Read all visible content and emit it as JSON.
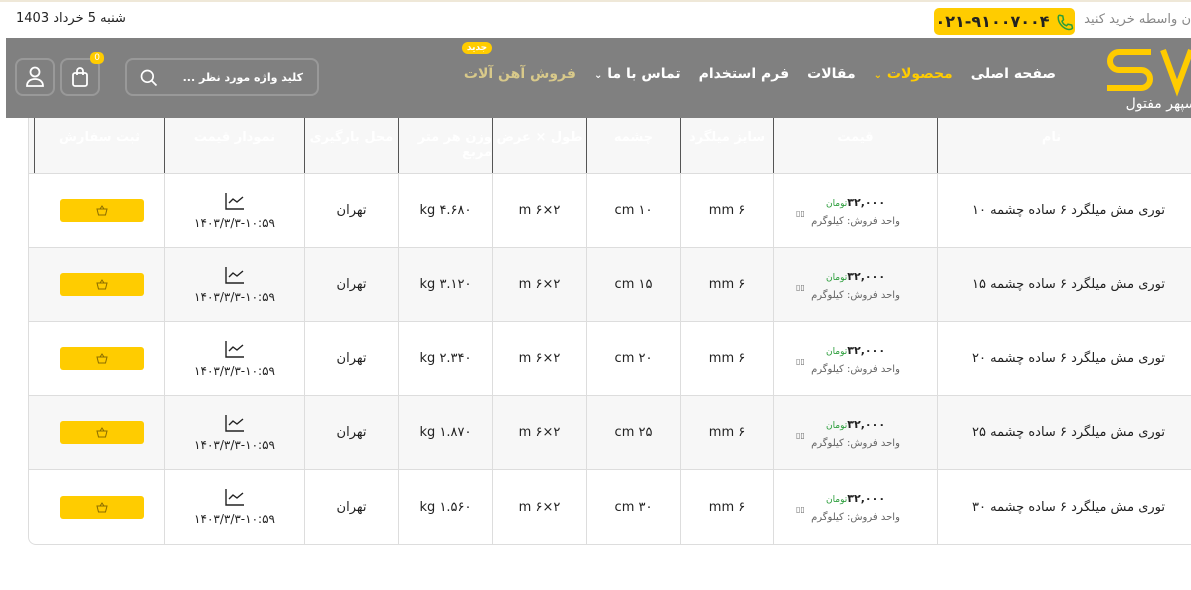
{
  "topbar": {
    "date": "شنبه 5 خرداد 1403",
    "slogan": "ن واسطه خرید کنید",
    "phone": "۰۲۱-۹۱۰۰۷۰۰۴"
  },
  "nav": {
    "logo_text": "SV سپهر مفتول",
    "items": [
      {
        "label": "صفحه اصلی"
      },
      {
        "label": "محصولات"
      },
      {
        "label": "مقالات"
      },
      {
        "label": "فرم استخدام"
      },
      {
        "label": "تماس با ما"
      },
      {
        "label": "فروش آهن آلات",
        "badge": "جدید"
      }
    ],
    "search_placeholder": "کلید واژه مورد نظر ...",
    "cart_count": "0"
  },
  "colors": {
    "accent": "#ffcc00",
    "nav_bg": "#808080",
    "header_bg": "#000000"
  },
  "table": {
    "headers": [
      "نام",
      "قیمت",
      "سایز میلگرد",
      "چشمه",
      "طول × عرض",
      "وزن هر متر مربع",
      "محل بارگیری",
      "نمودار قیمت",
      "ثبت سفارش"
    ],
    "rows": [
      {
        "name": "توری مش میلگرد ۶ ساده چشمه ۱۰",
        "price": "۳۲,۰۰۰",
        "currency": "تومان",
        "unit": "واحد فروش: کیلوگرم",
        "size": "۶ mm",
        "mesh": "۱۰ cm",
        "lw": "۲×۶ m",
        "weight": "۴.۶۸۰ kg",
        "location": "تهران",
        "chart_date": "۱۴۰۳/۳/۳-۱۰:۵۹"
      },
      {
        "name": "توری مش میلگرد ۶ ساده چشمه ۱۵",
        "price": "۳۲,۰۰۰",
        "currency": "تومان",
        "unit": "واحد فروش: کیلوگرم",
        "size": "۶ mm",
        "mesh": "۱۵ cm",
        "lw": "۲×۶ m",
        "weight": "۳.۱۲۰ kg",
        "location": "تهران",
        "chart_date": "۱۴۰۳/۳/۳-۱۰:۵۹"
      },
      {
        "name": "توری مش میلگرد ۶ ساده چشمه ۲۰",
        "price": "۳۲,۰۰۰",
        "currency": "تومان",
        "unit": "واحد فروش: کیلوگرم",
        "size": "۶ mm",
        "mesh": "۲۰ cm",
        "lw": "۲×۶ m",
        "weight": "۲.۳۴۰ kg",
        "location": "تهران",
        "chart_date": "۱۴۰۳/۳/۳-۱۰:۵۹"
      },
      {
        "name": "توری مش میلگرد ۶ ساده چشمه ۲۵",
        "price": "۳۲,۰۰۰",
        "currency": "تومان",
        "unit": "واحد فروش: کیلوگرم",
        "size": "۶ mm",
        "mesh": "۲۵ cm",
        "lw": "۲×۶ m",
        "weight": "۱.۸۷۰ kg",
        "location": "تهران",
        "chart_date": "۱۴۰۳/۳/۳-۱۰:۵۹"
      },
      {
        "name": "توری مش میلگرد ۶ ساده چشمه ۳۰",
        "price": "۳۲,۰۰۰",
        "currency": "تومان",
        "unit": "واحد فروش: کیلوگرم",
        "size": "۶ mm",
        "mesh": "۳۰ cm",
        "lw": "۲×۶ m",
        "weight": "۱.۵۶۰ kg",
        "location": "تهران",
        "chart_date": "۱۴۰۳/۳/۳-۱۰:۵۹"
      }
    ]
  }
}
